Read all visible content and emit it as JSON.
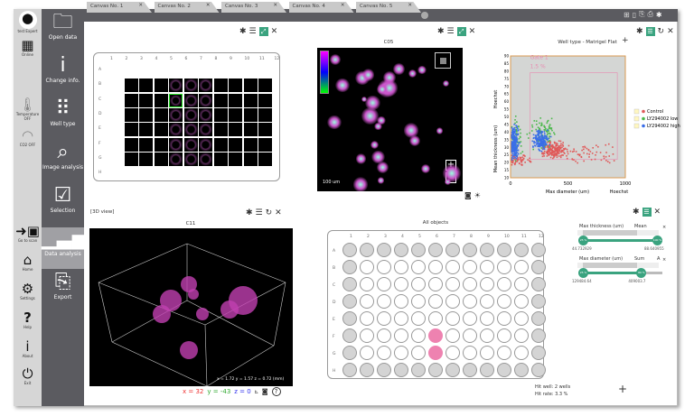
{
  "tabs": [
    "Canvas No. 1",
    "Canvas No. 2",
    "Canvas No. 3",
    "Canvas No. 4",
    "Canvas No. 5"
  ],
  "top_icons": [
    "grid-icon",
    "document-icon",
    "export-icon",
    "print-icon",
    "gear-icon"
  ],
  "left_tools": {
    "user": "test Expert",
    "device": "Online",
    "temperature": "Temperature OFF",
    "co2": "CO2 OFF",
    "go_to_scan": "Go to scan",
    "home": "Home",
    "settings": "Settings",
    "help": "Help",
    "about": "About",
    "exit": "Exit"
  },
  "nav": [
    {
      "label": "Open data",
      "icon": "folder-icon"
    },
    {
      "label": "Change info.",
      "icon": "info-icon"
    },
    {
      "label": "Well type",
      "icon": "well-plate-icon"
    },
    {
      "label": "Image analysis",
      "icon": "search-icon"
    },
    {
      "label": "Selection",
      "icon": "checkbox-icon"
    },
    {
      "label": "Data analysis",
      "icon": "bar-chart-icon",
      "active": true
    },
    {
      "label": "Export",
      "icon": "export-icon"
    }
  ],
  "plate1": {
    "cols": [
      "1",
      "2",
      "3",
      "4",
      "5",
      "6",
      "7",
      "8",
      "9",
      "10",
      "11",
      "12"
    ],
    "rows": [
      "A",
      "B",
      "C",
      "D",
      "E",
      "F",
      "G",
      "H"
    ],
    "selected": "C5"
  },
  "image": {
    "title": "C05",
    "scale": "100 um"
  },
  "scatter": {
    "title": "Well type - Matrigel Flat",
    "gate": "Gate 1",
    "gate_pct": "1.5 %",
    "xlabel": "Max diameter (um)",
    "xchannel": "Hoechst",
    "ylabel": "Mean thickness (um)",
    "ychannel": "Hoechst",
    "xticks": [
      "0",
      "500",
      "1000"
    ],
    "yticks": [
      "10",
      "15",
      "20",
      "25",
      "30",
      "35",
      "40",
      "45",
      "50",
      "55",
      "60",
      "65",
      "70",
      "75",
      "80",
      "85",
      "90"
    ],
    "legend": [
      {
        "name": "Control",
        "color": "#e05a5a"
      },
      {
        "name": "LY294002 low",
        "color": "#4cb84c"
      },
      {
        "name": "LY294002 high",
        "color": "#3a6ee8"
      }
    ]
  },
  "view3d": {
    "header": "[3D view]",
    "title": "C11",
    "dims": "x = 1.72  y = 1.57  z = 0.72 (mm)",
    "x": "x = 32",
    "y": "y = -43",
    "z": "z = 0",
    "help": "?"
  },
  "plate2": {
    "title": "All objects",
    "hits": [
      "F6",
      "G6"
    ],
    "hit_well": "Hit well:  2 wells",
    "hit_rate": "Hit rate:   3.3 %"
  },
  "filters": [
    {
      "name": "Max thickness (um)",
      "stat": "Mean",
      "lo_pct": "25 %",
      "hi_pct": "100 %",
      "lo": "44.732929",
      "hi": "88.640955",
      "lo_frac": 0.25,
      "hi_frac": 1.0
    },
    {
      "name": "Max diameter (um)",
      "stat": "Sum",
      "extra": "A",
      "lo_pct": "25 %",
      "hi_pct": "80 %",
      "lo": "129484.64",
      "hi": "409003.7",
      "lo_frac": 0.25,
      "hi_frac": 0.8
    }
  ],
  "colors": {
    "accent": "#3aa37f",
    "hit": "#ee82b0",
    "sidebar": "#5b5b60"
  }
}
